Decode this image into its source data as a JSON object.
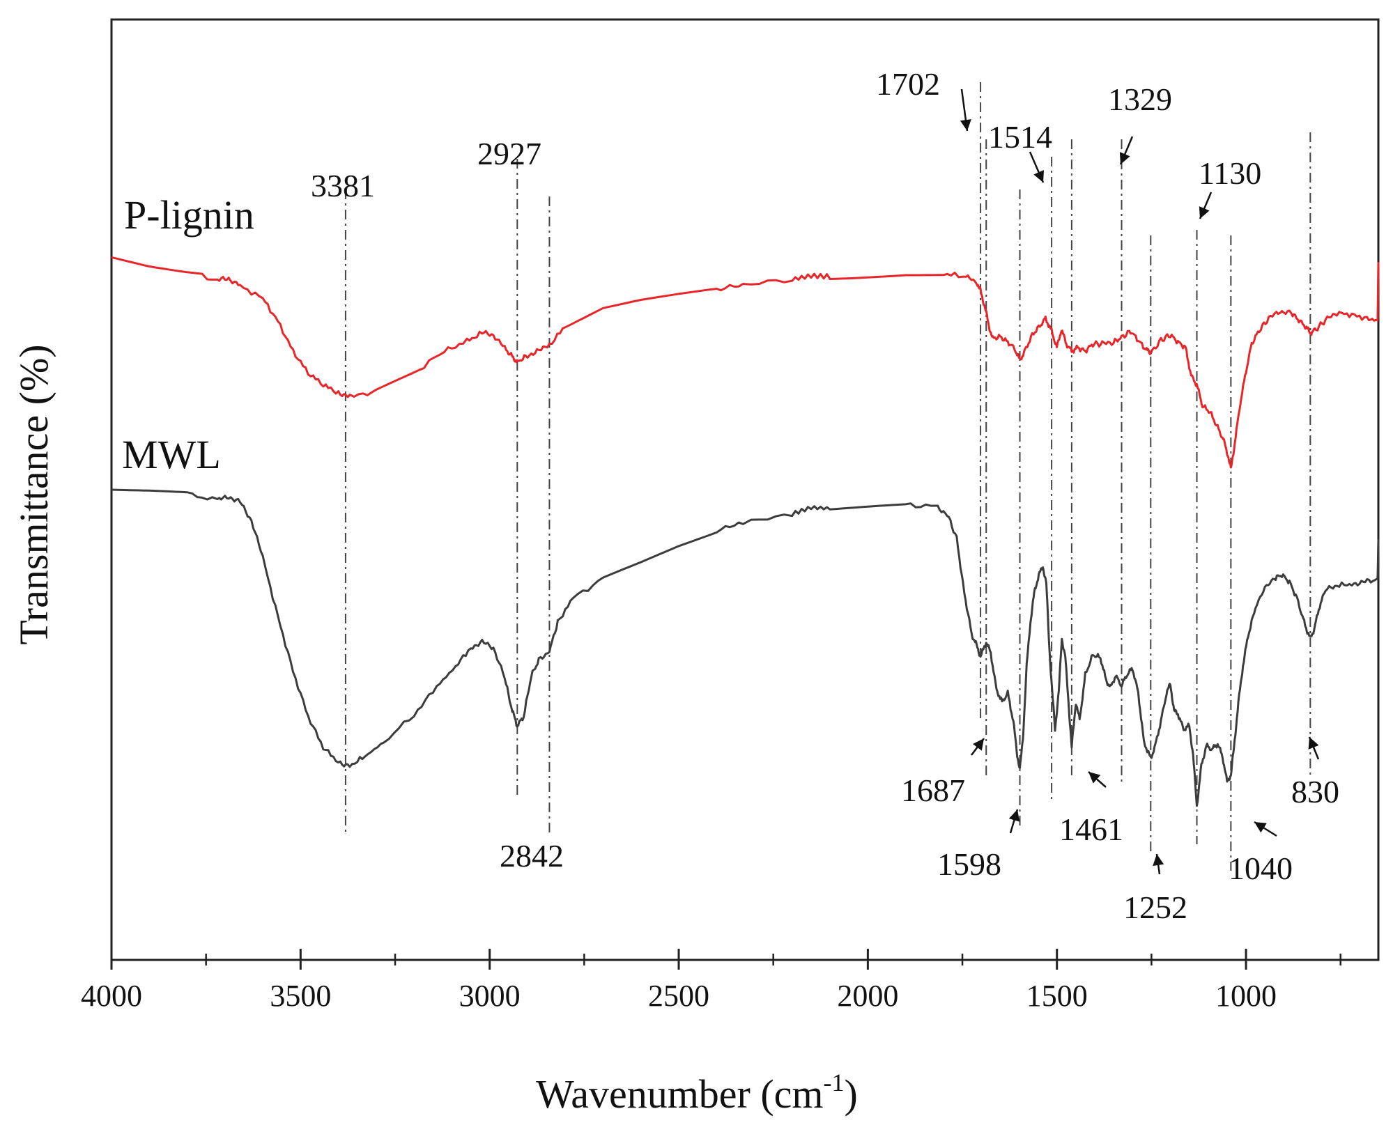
{
  "chart_data": {
    "type": "line",
    "title": "",
    "xlabel": "Wavenumber (cm",
    "xlabel_sup": "-1",
    "xlabel_close": ")",
    "ylabel": "Transmittance (%)",
    "xlim": [
      4000,
      650
    ],
    "ylim": [
      0,
      100
    ],
    "x_ticks": [
      4000,
      3500,
      3000,
      2500,
      2000,
      1500,
      1000
    ],
    "x_tick_labels": [
      "4000",
      "3500",
      "3000",
      "2500",
      "2000",
      "1500",
      "1000"
    ],
    "series": [
      {
        "name": "P-lignin",
        "color": "#e8262a",
        "points": [
          [
            4000,
            75.5
          ],
          [
            3900,
            74.6
          ],
          [
            3800,
            74.0
          ],
          [
            3720,
            73.0
          ],
          [
            3690,
            73.2
          ],
          [
            3660,
            72.4
          ],
          [
            3600,
            71.0
          ],
          [
            3560,
            68.5
          ],
          [
            3520,
            65.2
          ],
          [
            3480,
            62.8
          ],
          [
            3440,
            61.5
          ],
          [
            3400,
            60.6
          ],
          [
            3370,
            60.3
          ],
          [
            3300,
            60.8
          ],
          [
            3200,
            62.8
          ],
          [
            3120,
            65.2
          ],
          [
            3060,
            66.3
          ],
          [
            3020,
            67.2
          ],
          [
            2990,
            67.0
          ],
          [
            2960,
            65.5
          ],
          [
            2940,
            64.6
          ],
          [
            2927,
            64.0
          ],
          [
            2905,
            64.6
          ],
          [
            2875,
            65.2
          ],
          [
            2842,
            65.8
          ],
          [
            2800,
            68.0
          ],
          [
            2700,
            70.0
          ],
          [
            2600,
            70.8
          ],
          [
            2500,
            71.4
          ],
          [
            2400,
            72.0
          ],
          [
            2330,
            72.4
          ],
          [
            2200,
            73.1
          ],
          [
            2150,
            73.5
          ],
          [
            2100,
            73.4
          ],
          [
            2000,
            73.6
          ],
          [
            1900,
            73.8
          ],
          [
            1800,
            73.7
          ],
          [
            1740,
            73.4
          ],
          [
            1712,
            72.8
          ],
          [
            1702,
            71.8
          ],
          [
            1690,
            70.0
          ],
          [
            1680,
            68.0
          ],
          [
            1670,
            66.6
          ],
          [
            1650,
            66.8
          ],
          [
            1630,
            66.2
          ],
          [
            1612,
            65.5
          ],
          [
            1598,
            64.2
          ],
          [
            1585,
            65.2
          ],
          [
            1565,
            67.0
          ],
          [
            1545,
            68.0
          ],
          [
            1530,
            68.8
          ],
          [
            1514,
            67.4
          ],
          [
            1500,
            65.6
          ],
          [
            1488,
            67.6
          ],
          [
            1475,
            66.0
          ],
          [
            1461,
            65.2
          ],
          [
            1445,
            65.6
          ],
          [
            1425,
            65.2
          ],
          [
            1405,
            66.0
          ],
          [
            1380,
            66.0
          ],
          [
            1350,
            66.2
          ],
          [
            1329,
            66.7
          ],
          [
            1305,
            67.4
          ],
          [
            1285,
            66.4
          ],
          [
            1265,
            65.4
          ],
          [
            1252,
            65.0
          ],
          [
            1225,
            66.4
          ],
          [
            1200,
            67.0
          ],
          [
            1180,
            66.2
          ],
          [
            1160,
            65.6
          ],
          [
            1145,
            62.5
          ],
          [
            1130,
            61.5
          ],
          [
            1115,
            59.2
          ],
          [
            1095,
            58.5
          ],
          [
            1075,
            56.8
          ],
          [
            1060,
            55.5
          ],
          [
            1048,
            53.8
          ],
          [
            1040,
            52.2
          ],
          [
            1030,
            55.0
          ],
          [
            1015,
            59.5
          ],
          [
            1000,
            63.0
          ],
          [
            985,
            66.0
          ],
          [
            965,
            67.5
          ],
          [
            940,
            68.8
          ],
          [
            910,
            69.6
          ],
          [
            880,
            69.4
          ],
          [
            860,
            68.6
          ],
          [
            840,
            67.8
          ],
          [
            830,
            67.2
          ],
          [
            815,
            67.6
          ],
          [
            790,
            68.6
          ],
          [
            760,
            69.4
          ],
          [
            720,
            69.2
          ],
          [
            680,
            68.8
          ],
          [
            652,
            68.6
          ],
          [
            650,
            75.0
          ]
        ]
      },
      {
        "name": "MWL",
        "color": "#3c3c3c",
        "points": [
          [
            4000,
            50.0
          ],
          [
            3900,
            49.8
          ],
          [
            3800,
            49.5
          ],
          [
            3720,
            48.8
          ],
          [
            3690,
            49.2
          ],
          [
            3660,
            48.6
          ],
          [
            3630,
            46.6
          ],
          [
            3600,
            42.5
          ],
          [
            3560,
            36.0
          ],
          [
            3520,
            30.0
          ],
          [
            3480,
            25.0
          ],
          [
            3440,
            21.6
          ],
          [
            3400,
            20.0
          ],
          [
            3370,
            19.6
          ],
          [
            3330,
            20.6
          ],
          [
            3280,
            22.2
          ],
          [
            3200,
            25.2
          ],
          [
            3140,
            28.3
          ],
          [
            3090,
            30.5
          ],
          [
            3050,
            32.6
          ],
          [
            3020,
            33.2
          ],
          [
            2990,
            32.6
          ],
          [
            2960,
            29.2
          ],
          [
            2940,
            25.6
          ],
          [
            2927,
            24.0
          ],
          [
            2910,
            25.0
          ],
          [
            2890,
            29.5
          ],
          [
            2870,
            31.2
          ],
          [
            2842,
            32.2
          ],
          [
            2820,
            35.4
          ],
          [
            2780,
            38.0
          ],
          [
            2700,
            40.2
          ],
          [
            2600,
            42.0
          ],
          [
            2500,
            43.9
          ],
          [
            2400,
            45.5
          ],
          [
            2330,
            46.2
          ],
          [
            2200,
            47.3
          ],
          [
            2150,
            48.0
          ],
          [
            2100,
            47.9
          ],
          [
            2000,
            48.1
          ],
          [
            1900,
            48.3
          ],
          [
            1820,
            48.1
          ],
          [
            1790,
            47.3
          ],
          [
            1765,
            44.6
          ],
          [
            1745,
            38.6
          ],
          [
            1725,
            34.0
          ],
          [
            1712,
            32.8
          ],
          [
            1702,
            31.6
          ],
          [
            1687,
            33.2
          ],
          [
            1675,
            32.0
          ],
          [
            1660,
            28.0
          ],
          [
            1645,
            26.6
          ],
          [
            1630,
            27.6
          ],
          [
            1615,
            24.4
          ],
          [
            1605,
            20.8
          ],
          [
            1598,
            19.2
          ],
          [
            1590,
            22.5
          ],
          [
            1580,
            30.6
          ],
          [
            1570,
            35.4
          ],
          [
            1560,
            38.6
          ],
          [
            1548,
            40.6
          ],
          [
            1537,
            41.5
          ],
          [
            1528,
            39.6
          ],
          [
            1520,
            32.6
          ],
          [
            1514,
            28.6
          ],
          [
            1505,
            23.6
          ],
          [
            1495,
            27.8
          ],
          [
            1487,
            33.6
          ],
          [
            1478,
            31.6
          ],
          [
            1470,
            27.0
          ],
          [
            1461,
            21.6
          ],
          [
            1450,
            26.6
          ],
          [
            1440,
            24.6
          ],
          [
            1425,
            29.6
          ],
          [
            1405,
            31.8
          ],
          [
            1385,
            31.5
          ],
          [
            1370,
            29.0
          ],
          [
            1358,
            28.2
          ],
          [
            1345,
            29.5
          ],
          [
            1329,
            28.4
          ],
          [
            1315,
            29.6
          ],
          [
            1300,
            30.3
          ],
          [
            1285,
            27.6
          ],
          [
            1270,
            22.2
          ],
          [
            1252,
            20.4
          ],
          [
            1240,
            21.8
          ],
          [
            1225,
            24.5
          ],
          [
            1210,
            27.6
          ],
          [
            1200,
            28.6
          ],
          [
            1190,
            25.6
          ],
          [
            1180,
            25.3
          ],
          [
            1165,
            23.6
          ],
          [
            1150,
            24.0
          ],
          [
            1140,
            20.8
          ],
          [
            1130,
            15.2
          ],
          [
            1118,
            19.6
          ],
          [
            1105,
            21.8
          ],
          [
            1090,
            21.4
          ],
          [
            1075,
            22.0
          ],
          [
            1062,
            20.6
          ],
          [
            1050,
            17.8
          ],
          [
            1040,
            18.6
          ],
          [
            1032,
            21.5
          ],
          [
            1020,
            26.6
          ],
          [
            1008,
            30.6
          ],
          [
            995,
            33.8
          ],
          [
            975,
            37.0
          ],
          [
            950,
            39.2
          ],
          [
            925,
            40.2
          ],
          [
            905,
            40.6
          ],
          [
            885,
            39.8
          ],
          [
            865,
            38.0
          ],
          [
            848,
            35.6
          ],
          [
            838,
            34.4
          ],
          [
            830,
            33.6
          ],
          [
            820,
            34.6
          ],
          [
            805,
            37.2
          ],
          [
            790,
            38.9
          ],
          [
            760,
            39.4
          ],
          [
            720,
            39.6
          ],
          [
            690,
            39.8
          ],
          [
            660,
            40.0
          ],
          [
            652,
            40.2
          ],
          [
            650,
            44.5
          ]
        ]
      }
    ],
    "series_labels": [
      "P-lignin",
      "MWL"
    ],
    "peak_labels": [
      "3381",
      "2927",
      "2842",
      "1702",
      "1687",
      "1598",
      "1514",
      "1461",
      "1329",
      "1252",
      "1130",
      "1040",
      "830"
    ],
    "annotations": [
      {
        "text": "3381",
        "x": 3381
      },
      {
        "text": "2927",
        "x": 2927
      },
      {
        "text": "2842",
        "x": 2842
      },
      {
        "text": "1702",
        "x": 1702
      },
      {
        "text": "1687",
        "x": 1687
      },
      {
        "text": "1598",
        "x": 1598
      },
      {
        "text": "1514",
        "x": 1514
      },
      {
        "text": "1461",
        "x": 1461
      },
      {
        "text": "1329",
        "x": 1329
      },
      {
        "text": "1252",
        "x": 1252
      },
      {
        "text": "1130",
        "x": 1130
      },
      {
        "text": "1040",
        "x": 1040
      },
      {
        "text": "830",
        "x": 830
      }
    ],
    "grid": false,
    "legend": "inline-left"
  }
}
